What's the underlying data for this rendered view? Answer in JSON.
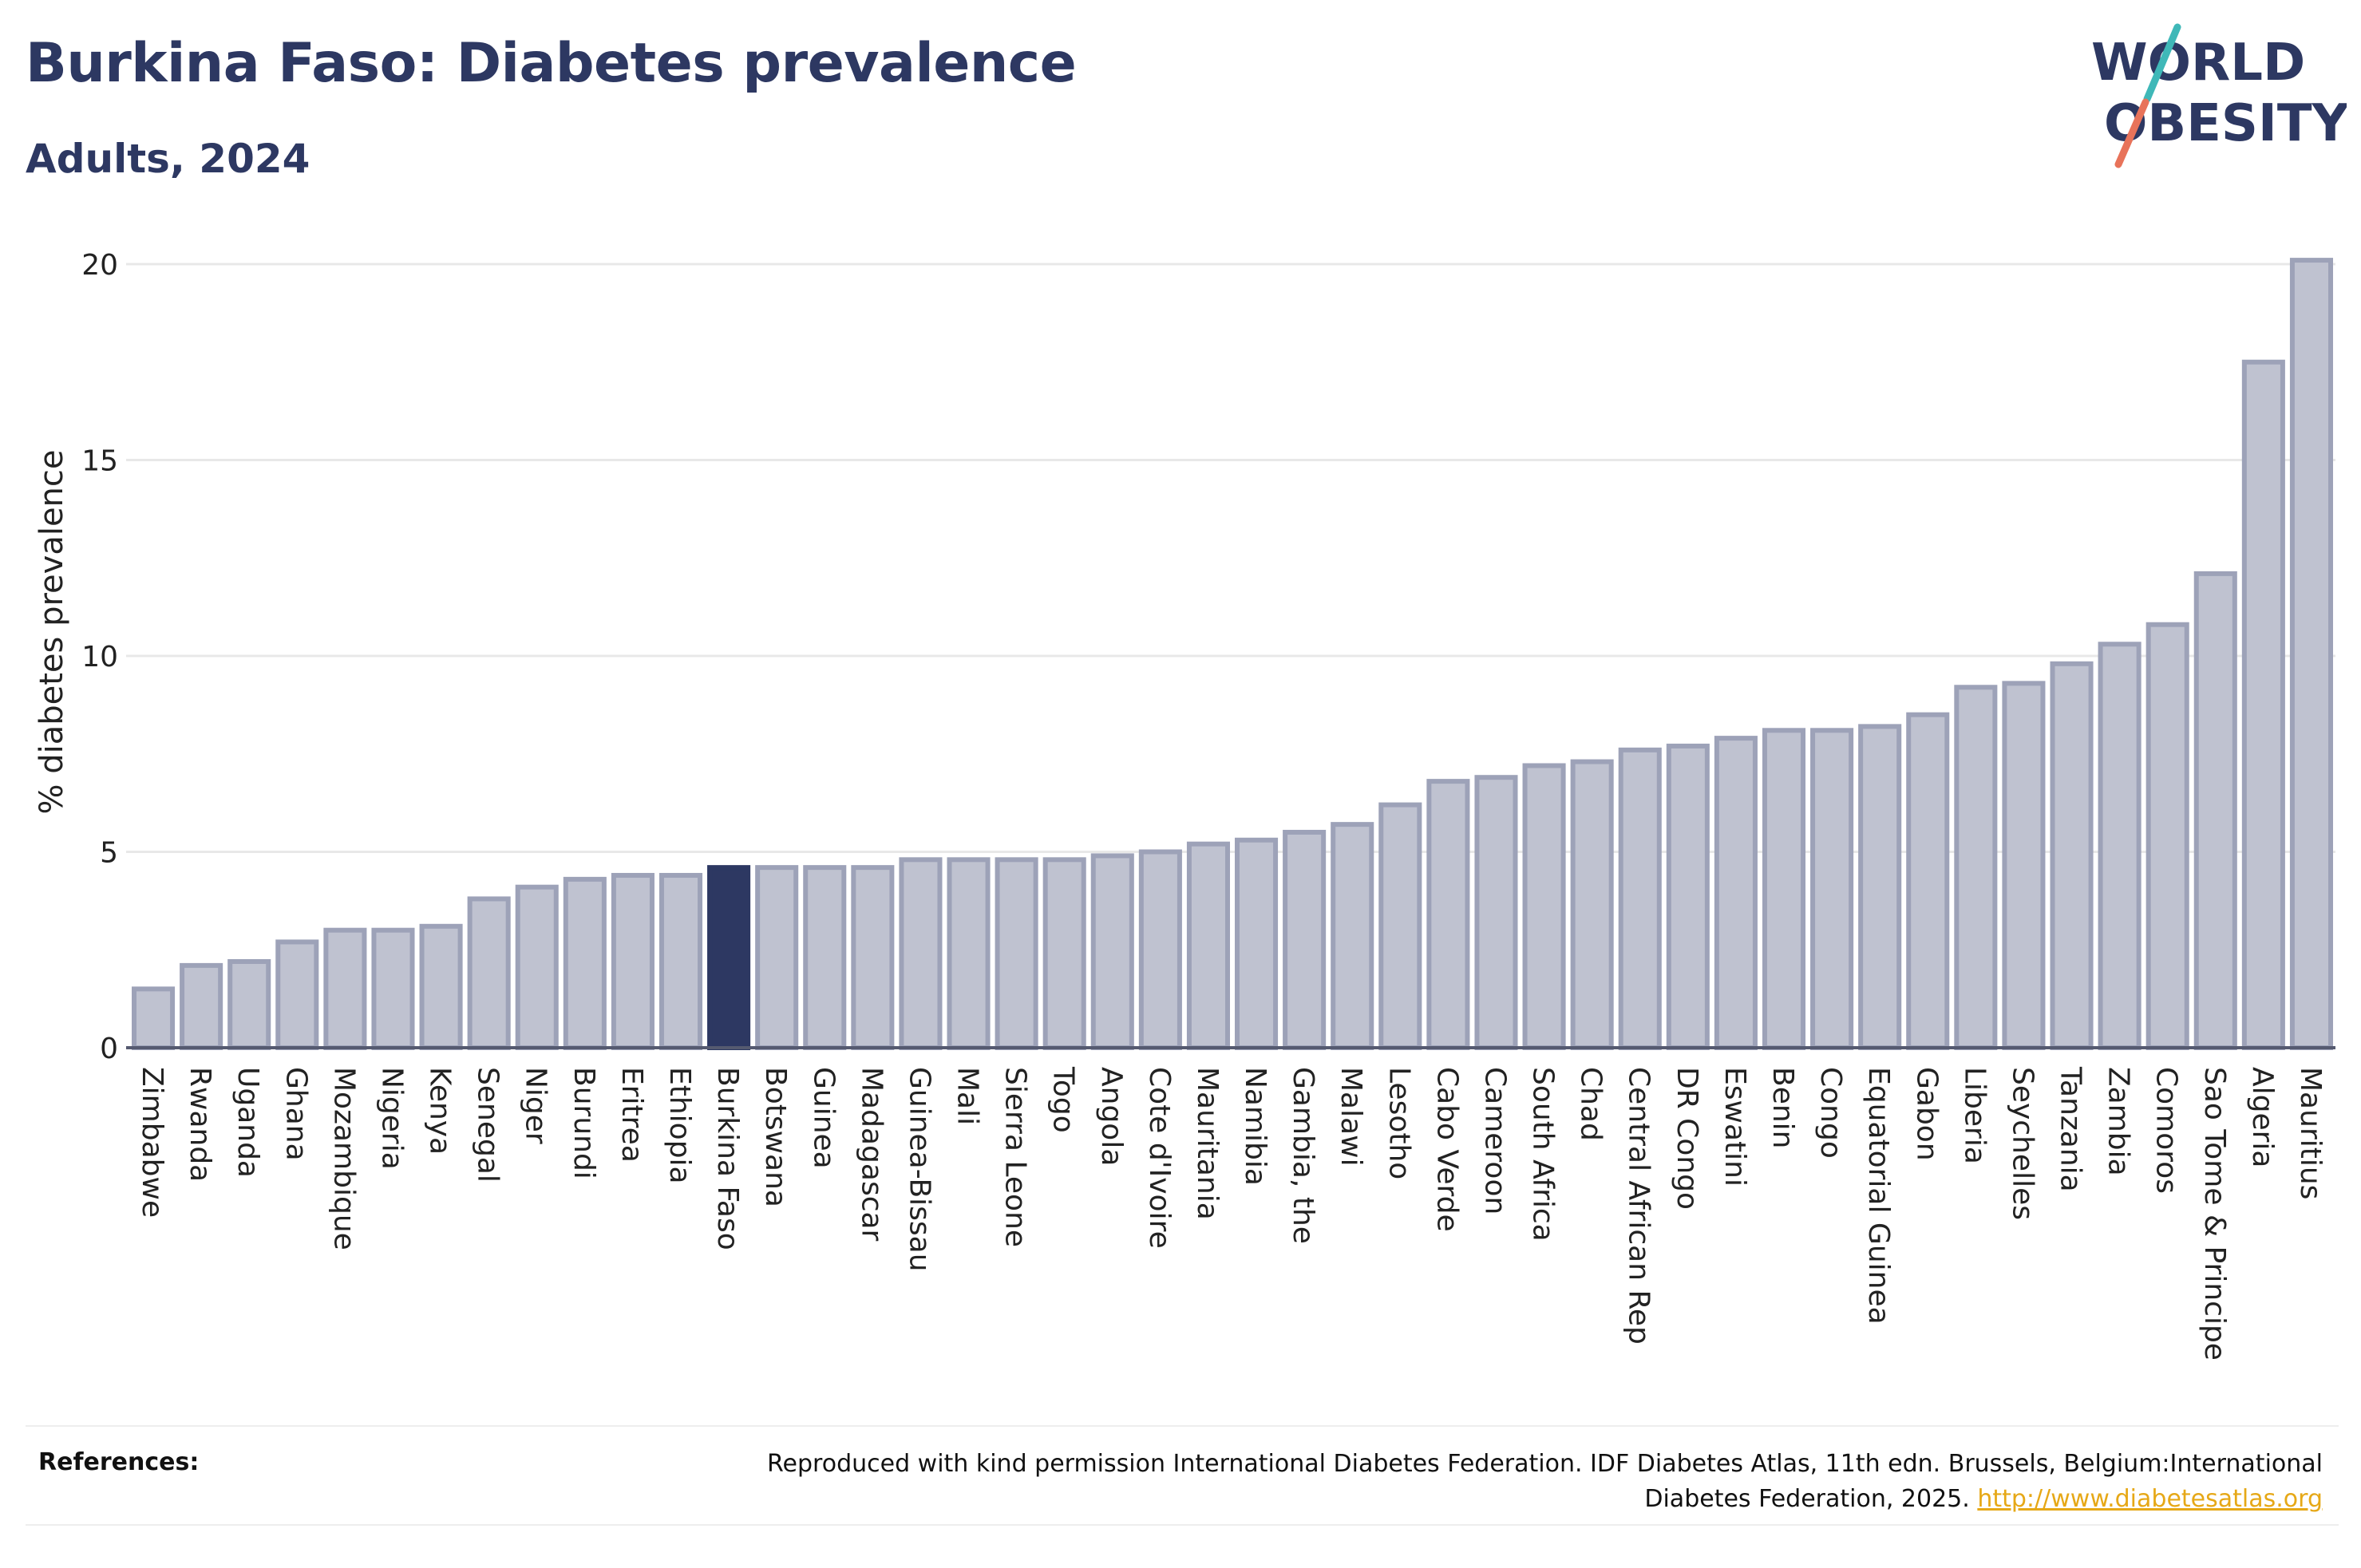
{
  "header": {
    "title": "Burkina Faso: Diabetes prevalence",
    "subtitle": "Adults, 2024"
  },
  "logo": {
    "line1": "WORLD",
    "line2": "OBESITY",
    "color_text": "#2d3862",
    "color_accent1": "#3fb8b8",
    "color_accent2": "#e8735a"
  },
  "chart_data": {
    "type": "bar",
    "ylabel": "% diabetes prevalence",
    "xlabel": "",
    "ylim": [
      0,
      20
    ],
    "yticks": [
      0,
      5,
      10,
      15,
      20
    ],
    "grid": true,
    "highlight": "Burkina Faso",
    "colors": {
      "bar_fill": "#bfc2d0",
      "bar_stroke": "#9da2b8",
      "highlight": "#2d3862",
      "grid": "#e8e8e8",
      "axis": "#555a70"
    },
    "categories": [
      "Zimbabwe",
      "Rwanda",
      "Uganda",
      "Ghana",
      "Mozambique",
      "Nigeria",
      "Kenya",
      "Senegal",
      "Niger",
      "Burundi",
      "Eritrea",
      "Ethiopia",
      "Burkina Faso",
      "Botswana",
      "Guinea",
      "Madagascar",
      "Guinea-Bissau",
      "Mali",
      "Sierra Leone",
      "Togo",
      "Angola",
      "Cote d'Ivoire",
      "Mauritania",
      "Namibia",
      "Gambia, the",
      "Malawi",
      "Lesotho",
      "Cabo Verde",
      "Cameroon",
      "South Africa",
      "Chad",
      "Central African Rep",
      "DR Congo",
      "Eswatini",
      "Benin",
      "Congo",
      "Equatorial Guinea",
      "Gabon",
      "Liberia",
      "Seychelles",
      "Tanzania",
      "Zambia",
      "Comoros",
      "Sao Tome & Principe",
      "Algeria",
      "Mauritius"
    ],
    "values": [
      1.5,
      2.1,
      2.2,
      2.7,
      3.0,
      3.0,
      3.1,
      3.8,
      4.1,
      4.3,
      4.4,
      4.4,
      4.6,
      4.6,
      4.6,
      4.6,
      4.8,
      4.8,
      4.8,
      4.8,
      4.9,
      5.0,
      5.2,
      5.3,
      5.5,
      5.7,
      6.2,
      6.8,
      6.9,
      7.2,
      7.3,
      7.6,
      7.7,
      7.9,
      8.1,
      8.1,
      8.2,
      8.5,
      9.2,
      9.3,
      9.8,
      10.3,
      10.8,
      12.1,
      17.5,
      20.1
    ]
  },
  "references": {
    "label": "References:",
    "text": "Reproduced with kind permission International Diabetes Federation. IDF Diabetes Atlas, 11th edn. Brussels, Belgium:International Diabetes Federation, 2025.",
    "link": "http://www.diabetesatlas.org"
  }
}
